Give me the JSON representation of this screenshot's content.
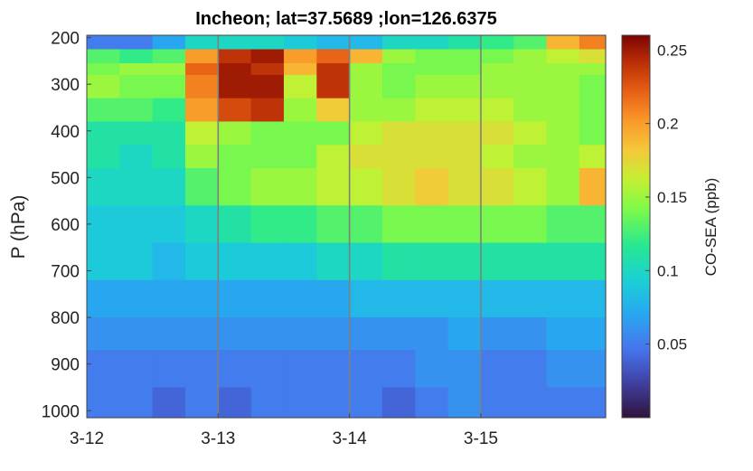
{
  "chart_data": {
    "type": "heatmap",
    "title": "Incheon; lat=37.5689 ;lon=126.6375",
    "ylabel": "P (hPa)",
    "xlabel": "",
    "colorbar_label": "CO-SEA (ppb)",
    "colormap": "turbo",
    "clim": [
      0,
      0.26
    ],
    "xlim": [
      0,
      3.95
    ],
    "ylim": [
      1015,
      195
    ],
    "y_reversed": true,
    "x_ticks": [
      {
        "value": 0,
        "label": "3-12"
      },
      {
        "value": 1,
        "label": "3-13"
      },
      {
        "value": 2,
        "label": "3-14"
      },
      {
        "value": 3,
        "label": "3-15"
      }
    ],
    "y_ticks": [
      {
        "value": 200,
        "label": "200"
      },
      {
        "value": 300,
        "label": "300"
      },
      {
        "value": 400,
        "label": "400"
      },
      {
        "value": 500,
        "label": "500"
      },
      {
        "value": 600,
        "label": "600"
      },
      {
        "value": 700,
        "label": "700"
      },
      {
        "value": 800,
        "label": "800"
      },
      {
        "value": 900,
        "label": "900"
      },
      {
        "value": 1000,
        "label": "1000"
      }
    ],
    "colorbar_ticks": [
      {
        "value": 0.05,
        "label": "0.05"
      },
      {
        "value": 0.1,
        "label": "0.1"
      },
      {
        "value": 0.15,
        "label": "0.15"
      },
      {
        "value": 0.2,
        "label": "0.2"
      },
      {
        "value": 0.25,
        "label": "0.25"
      }
    ],
    "vertical_lines_at": [
      1,
      2,
      3
    ],
    "grid": false,
    "x_edges": [
      0,
      0.25,
      0.5,
      0.75,
      1.0,
      1.25,
      1.5,
      1.75,
      2.0,
      2.25,
      2.5,
      2.75,
      3.0,
      3.25,
      3.5,
      3.75,
      3.95
    ],
    "p_edges": [
      195,
      225,
      255,
      280,
      330,
      380,
      430,
      480,
      560,
      640,
      720,
      800,
      870,
      950,
      1015
    ],
    "values": [
      [
        0.05,
        0.05,
        0.07,
        0.1,
        0.1,
        0.1,
        0.09,
        0.08,
        0.08,
        0.1,
        0.1,
        0.11,
        0.12,
        0.13,
        0.19,
        0.21
      ],
      [
        0.13,
        0.12,
        0.13,
        0.2,
        0.24,
        0.25,
        0.2,
        0.22,
        0.19,
        0.15,
        0.14,
        0.14,
        0.14,
        0.15,
        0.16,
        0.17
      ],
      [
        0.14,
        0.15,
        0.15,
        0.22,
        0.25,
        0.24,
        0.19,
        0.24,
        0.15,
        0.14,
        0.14,
        0.14,
        0.15,
        0.15,
        0.15,
        0.15
      ],
      [
        0.15,
        0.14,
        0.14,
        0.21,
        0.25,
        0.25,
        0.16,
        0.24,
        0.15,
        0.14,
        0.15,
        0.15,
        0.15,
        0.15,
        0.15,
        0.14
      ],
      [
        0.13,
        0.13,
        0.12,
        0.2,
        0.23,
        0.24,
        0.15,
        0.18,
        0.15,
        0.15,
        0.16,
        0.16,
        0.16,
        0.15,
        0.15,
        0.14
      ],
      [
        0.11,
        0.11,
        0.11,
        0.16,
        0.15,
        0.14,
        0.14,
        0.14,
        0.16,
        0.17,
        0.17,
        0.17,
        0.17,
        0.16,
        0.15,
        0.14
      ],
      [
        0.11,
        0.1,
        0.11,
        0.15,
        0.14,
        0.14,
        0.14,
        0.16,
        0.17,
        0.17,
        0.17,
        0.17,
        0.16,
        0.15,
        0.15,
        0.16
      ],
      [
        0.1,
        0.1,
        0.1,
        0.13,
        0.14,
        0.15,
        0.15,
        0.16,
        0.16,
        0.17,
        0.18,
        0.17,
        0.17,
        0.16,
        0.15,
        0.19
      ],
      [
        0.09,
        0.09,
        0.09,
        0.1,
        0.11,
        0.12,
        0.12,
        0.13,
        0.13,
        0.14,
        0.14,
        0.14,
        0.14,
        0.14,
        0.13,
        0.13
      ],
      [
        0.09,
        0.09,
        0.08,
        0.09,
        0.09,
        0.09,
        0.09,
        0.1,
        0.1,
        0.11,
        0.11,
        0.11,
        0.11,
        0.11,
        0.11,
        0.11
      ],
      [
        0.07,
        0.07,
        0.07,
        0.07,
        0.07,
        0.07,
        0.07,
        0.07,
        0.08,
        0.08,
        0.08,
        0.08,
        0.08,
        0.08,
        0.08,
        0.08
      ],
      [
        0.06,
        0.06,
        0.06,
        0.06,
        0.06,
        0.06,
        0.06,
        0.06,
        0.06,
        0.06,
        0.06,
        0.07,
        0.06,
        0.06,
        0.07,
        0.07
      ],
      [
        0.05,
        0.05,
        0.05,
        0.05,
        0.05,
        0.05,
        0.05,
        0.05,
        0.05,
        0.05,
        0.06,
        0.06,
        0.05,
        0.05,
        0.06,
        0.06
      ],
      [
        0.05,
        0.05,
        0.04,
        0.05,
        0.04,
        0.05,
        0.05,
        0.05,
        0.05,
        0.04,
        0.05,
        0.06,
        0.05,
        0.05,
        0.05,
        0.05
      ]
    ]
  }
}
